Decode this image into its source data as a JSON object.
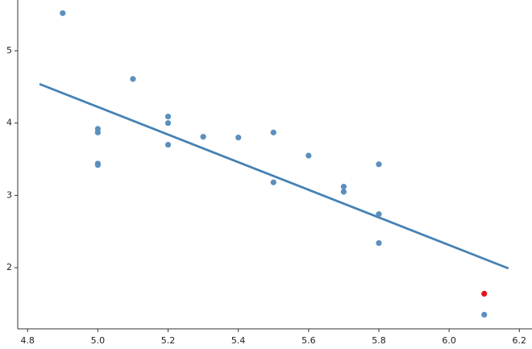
{
  "chart_data": {
    "type": "scatter",
    "xlim": [
      4.772,
      6.236
    ],
    "ylim": [
      1.154,
      5.702
    ],
    "xticks": [
      {
        "value": 4.8,
        "label": "4.8"
      },
      {
        "value": 5.0,
        "label": "5.0"
      },
      {
        "value": 5.2,
        "label": "5.2"
      },
      {
        "value": 5.4,
        "label": "5.4"
      },
      {
        "value": 5.6,
        "label": "5.6"
      },
      {
        "value": 5.8,
        "label": "5.8"
      },
      {
        "value": 6.0,
        "label": "6.0"
      },
      {
        "value": 6.2,
        "label": "6.2"
      }
    ],
    "yticks": [
      2,
      3,
      4,
      5
    ],
    "series": [
      {
        "color": "#5b8fbd",
        "x": [
          4.9,
          5.1,
          5.0,
          5.0,
          5.0,
          5.0,
          5.2,
          5.2,
          5.2,
          5.3,
          5.4,
          5.5,
          5.5,
          5.6,
          5.7,
          5.7,
          5.8,
          5.8,
          5.8,
          6.1
        ],
        "values": [
          5.52,
          4.61,
          3.92,
          3.87,
          3.44,
          3.42,
          4.09,
          4.0,
          3.7,
          3.81,
          3.8,
          3.87,
          3.18,
          3.55,
          3.12,
          3.05,
          3.43,
          2.74,
          2.34,
          1.35
        ]
      },
      {
        "color": "#e3141c",
        "x": [
          6.1
        ],
        "values": [
          1.64
        ]
      }
    ],
    "fit_line": {
      "color": "#4682b4",
      "x": [
        4.834,
        6.169
      ],
      "values": [
        4.54,
        1.99
      ]
    }
  }
}
